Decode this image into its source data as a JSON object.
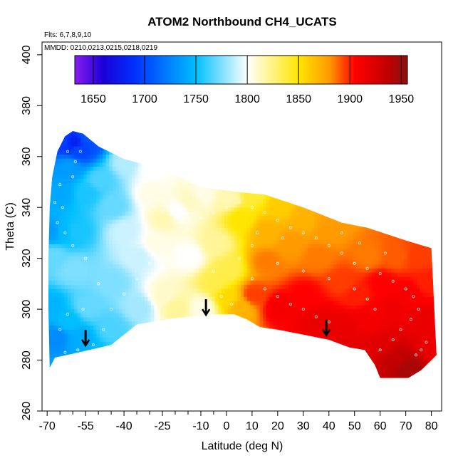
{
  "chart_data": {
    "type": "heatmap",
    "title": "ATOM2 Northbound CH4_UCATS",
    "annotations": [
      "Flts: 6,7,8,9,10",
      "MMDD: 0210,0213,0215,0218,0219"
    ],
    "xlabel": "Latitude (deg N)",
    "ylabel": "Theta (C)",
    "xlim": [
      -72,
      84
    ],
    "ylim": [
      260,
      405
    ],
    "x_ticks": [
      -70,
      -55,
      -40,
      -25,
      -10,
      0,
      10,
      20,
      30,
      40,
      50,
      60,
      70,
      80
    ],
    "x_tick_labels": [
      "-70",
      "-55",
      "-40",
      "-25",
      "-10",
      "0",
      "10",
      "20",
      "30",
      "40",
      "50",
      "60",
      "70",
      "80"
    ],
    "x_minor_ticks": [
      -65,
      -60,
      -50,
      -45,
      -35,
      -30,
      -20,
      -15,
      -5
    ],
    "y_ticks": [
      260,
      280,
      300,
      320,
      340,
      360,
      380,
      400
    ],
    "y_tick_labels": [
      "260",
      "280",
      "300",
      "320",
      "340",
      "360",
      "380",
      "400"
    ],
    "colorbar": {
      "range": [
        1632,
        1956
      ],
      "ticks": [
        1650,
        1700,
        1750,
        1800,
        1850,
        1900,
        1950
      ],
      "tick_labels": [
        "1650",
        "1700",
        "1750",
        "1800",
        "1850",
        "1900",
        "1950"
      ],
      "stops": [
        {
          "value": 1632,
          "color": "#8a1ef0"
        },
        {
          "value": 1660,
          "color": "#1a00d8"
        },
        {
          "value": 1690,
          "color": "#0030ff"
        },
        {
          "value": 1750,
          "color": "#00bfff"
        },
        {
          "value": 1800,
          "color": "#ffffff"
        },
        {
          "value": 1850,
          "color": "#ffe600"
        },
        {
          "value": 1880,
          "color": "#ff9a00"
        },
        {
          "value": 1905,
          "color": "#ff0000"
        },
        {
          "value": 1935,
          "color": "#c40000"
        },
        {
          "value": 1956,
          "color": "#8a1010"
        }
      ]
    },
    "domain_outline": [
      [
        -69,
        277
      ],
      [
        -67,
        281
      ],
      [
        -60,
        282.5
      ],
      [
        -45,
        286
      ],
      [
        -35,
        294
      ],
      [
        -20,
        296.5
      ],
      [
        -5,
        298
      ],
      [
        3,
        298
      ],
      [
        8,
        296
      ],
      [
        13,
        293
      ],
      [
        20,
        292
      ],
      [
        30,
        290
      ],
      [
        40,
        288
      ],
      [
        48,
        285
      ],
      [
        54,
        284
      ],
      [
        58,
        278
      ],
      [
        60,
        273
      ],
      [
        71,
        273
      ],
      [
        76,
        276
      ],
      [
        80,
        280
      ],
      [
        82,
        282
      ],
      [
        80,
        324
      ],
      [
        70,
        327
      ],
      [
        55,
        332
      ],
      [
        45,
        334
      ],
      [
        30,
        340
      ],
      [
        15,
        345
      ],
      [
        5,
        346
      ],
      [
        -10,
        348
      ],
      [
        -25,
        355
      ],
      [
        -40,
        359
      ],
      [
        -50,
        364
      ],
      [
        -56,
        369
      ],
      [
        -60,
        370
      ],
      [
        -63,
        368
      ],
      [
        -66,
        362
      ],
      [
        -68,
        352
      ],
      [
        -69,
        340
      ],
      [
        -69.5,
        320
      ],
      [
        -69.5,
        300
      ],
      [
        -69,
        277
      ]
    ],
    "field_points": [
      [
        -60,
        365,
        1680
      ],
      [
        -58,
        362,
        1700
      ],
      [
        -62,
        355,
        1735
      ],
      [
        -66,
        345,
        1740
      ],
      [
        -64,
        330,
        1748
      ],
      [
        -68,
        320,
        1770
      ],
      [
        -60,
        315,
        1775
      ],
      [
        -55,
        345,
        1755
      ],
      [
        -50,
        350,
        1765
      ],
      [
        -45,
        340,
        1770
      ],
      [
        -40,
        330,
        1790
      ],
      [
        -30,
        345,
        1805
      ],
      [
        -25,
        335,
        1815
      ],
      [
        -35,
        320,
        1790
      ],
      [
        -45,
        310,
        1775
      ],
      [
        -55,
        300,
        1770
      ],
      [
        -62,
        295,
        1750
      ],
      [
        -67,
        288,
        1728
      ],
      [
        -58,
        288,
        1742
      ],
      [
        -45,
        292,
        1765
      ],
      [
        -35,
        300,
        1782
      ],
      [
        -25,
        305,
        1810
      ],
      [
        -20,
        300,
        1820
      ],
      [
        -10,
        300,
        1805
      ],
      [
        -15,
        320,
        1800
      ],
      [
        -5,
        325,
        1820
      ],
      [
        0,
        315,
        1835
      ],
      [
        -10,
        345,
        1805
      ],
      [
        0,
        343,
        1815
      ],
      [
        5,
        335,
        1850
      ],
      [
        10,
        345,
        1840
      ],
      [
        15,
        330,
        1870
      ],
      [
        20,
        340,
        1860
      ],
      [
        25,
        325,
        1880
      ],
      [
        30,
        335,
        1870
      ],
      [
        35,
        320,
        1885
      ],
      [
        40,
        330,
        1880
      ],
      [
        10,
        305,
        1895
      ],
      [
        20,
        300,
        1910
      ],
      [
        30,
        305,
        1905
      ],
      [
        35,
        295,
        1915
      ],
      [
        45,
        292,
        1915
      ],
      [
        50,
        305,
        1900
      ],
      [
        55,
        295,
        1910
      ],
      [
        60,
        310,
        1905
      ],
      [
        65,
        300,
        1912
      ],
      [
        70,
        305,
        1908
      ],
      [
        75,
        295,
        1915
      ],
      [
        78,
        310,
        1900
      ],
      [
        75,
        320,
        1895
      ],
      [
        65,
        320,
        1890
      ],
      [
        55,
        320,
        1885
      ],
      [
        60,
        285,
        1920
      ],
      [
        65,
        280,
        1935
      ],
      [
        70,
        276,
        1945
      ],
      [
        5,
        300,
        1870
      ],
      [
        0,
        304,
        1855
      ],
      [
        -5,
        310,
        1835
      ],
      [
        -28,
        325,
        1805
      ],
      [
        -52,
        280,
        1748
      ],
      [
        -60,
        330,
        1755
      ],
      [
        -69,
        330,
        1735
      ],
      [
        -69,
        300,
        1745
      ],
      [
        80,
        285,
        1915
      ],
      [
        48,
        285,
        1918
      ],
      [
        -30,
        355,
        1800
      ],
      [
        -40,
        357,
        1785
      ],
      [
        -55,
        367,
        1705
      ],
      [
        -64,
        366,
        1695
      ],
      [
        40,
        335,
        1878
      ],
      [
        45,
        310,
        1895
      ],
      [
        15,
        318,
        1885
      ],
      [
        -20,
        338,
        1800
      ],
      [
        -15,
        342,
        1812
      ]
    ],
    "arrows": [
      [
        -55,
        288
      ],
      [
        -8,
        300
      ],
      [
        39,
        292
      ]
    ],
    "samples": [
      [
        -67,
        342
      ],
      [
        -66,
        334
      ],
      [
        -64,
        340
      ],
      [
        -60,
        352
      ],
      [
        -59,
        358
      ],
      [
        -62,
        362
      ],
      [
        -57,
        362
      ],
      [
        -65,
        349
      ],
      [
        -63,
        330
      ],
      [
        -60,
        325
      ],
      [
        -55,
        320
      ],
      [
        -50,
        310
      ],
      [
        -56,
        300
      ],
      [
        -62,
        298
      ],
      [
        -65,
        292
      ],
      [
        -63,
        283
      ],
      [
        -58,
        284
      ],
      [
        -52,
        286
      ],
      [
        -48,
        292
      ],
      [
        -45,
        300
      ],
      [
        -40,
        306
      ],
      [
        -35,
        312
      ],
      [
        -30,
        318
      ],
      [
        -25,
        322
      ],
      [
        -20,
        327
      ],
      [
        -15,
        332
      ],
      [
        -10,
        336
      ],
      [
        -5,
        338
      ],
      [
        0,
        340
      ],
      [
        5,
        342
      ],
      [
        -30,
        342
      ],
      [
        -25,
        338
      ],
      [
        -20,
        341
      ],
      [
        -10,
        345
      ],
      [
        -5,
        344
      ],
      [
        10,
        340
      ],
      [
        15,
        338
      ],
      [
        20,
        335
      ],
      [
        25,
        332
      ],
      [
        30,
        330
      ],
      [
        35,
        328
      ],
      [
        40,
        325
      ],
      [
        45,
        322
      ],
      [
        50,
        318
      ],
      [
        55,
        316
      ],
      [
        60,
        314
      ],
      [
        65,
        311
      ],
      [
        70,
        308
      ],
      [
        73,
        305
      ],
      [
        75,
        300
      ],
      [
        72,
        296
      ],
      [
        68,
        292
      ],
      [
        65,
        288
      ],
      [
        60,
        284
      ],
      [
        74,
        282
      ],
      [
        76,
        284
      ],
      [
        78,
        287
      ],
      [
        10,
        312
      ],
      [
        15,
        308
      ],
      [
        20,
        305
      ],
      [
        25,
        302
      ],
      [
        30,
        300
      ],
      [
        35,
        297
      ],
      [
        40,
        295
      ],
      [
        5,
        320
      ],
      [
        10,
        325
      ],
      [
        20,
        318
      ],
      [
        30,
        315
      ],
      [
        40,
        312
      ],
      [
        50,
        308
      ],
      [
        55,
        304
      ],
      [
        58,
        300
      ],
      [
        -5,
        315
      ],
      [
        -2,
        305
      ],
      [
        2,
        302
      ],
      [
        12,
        330
      ],
      [
        22,
        328
      ],
      [
        45,
        330
      ],
      [
        52,
        326
      ],
      [
        62,
        322
      ]
    ]
  }
}
